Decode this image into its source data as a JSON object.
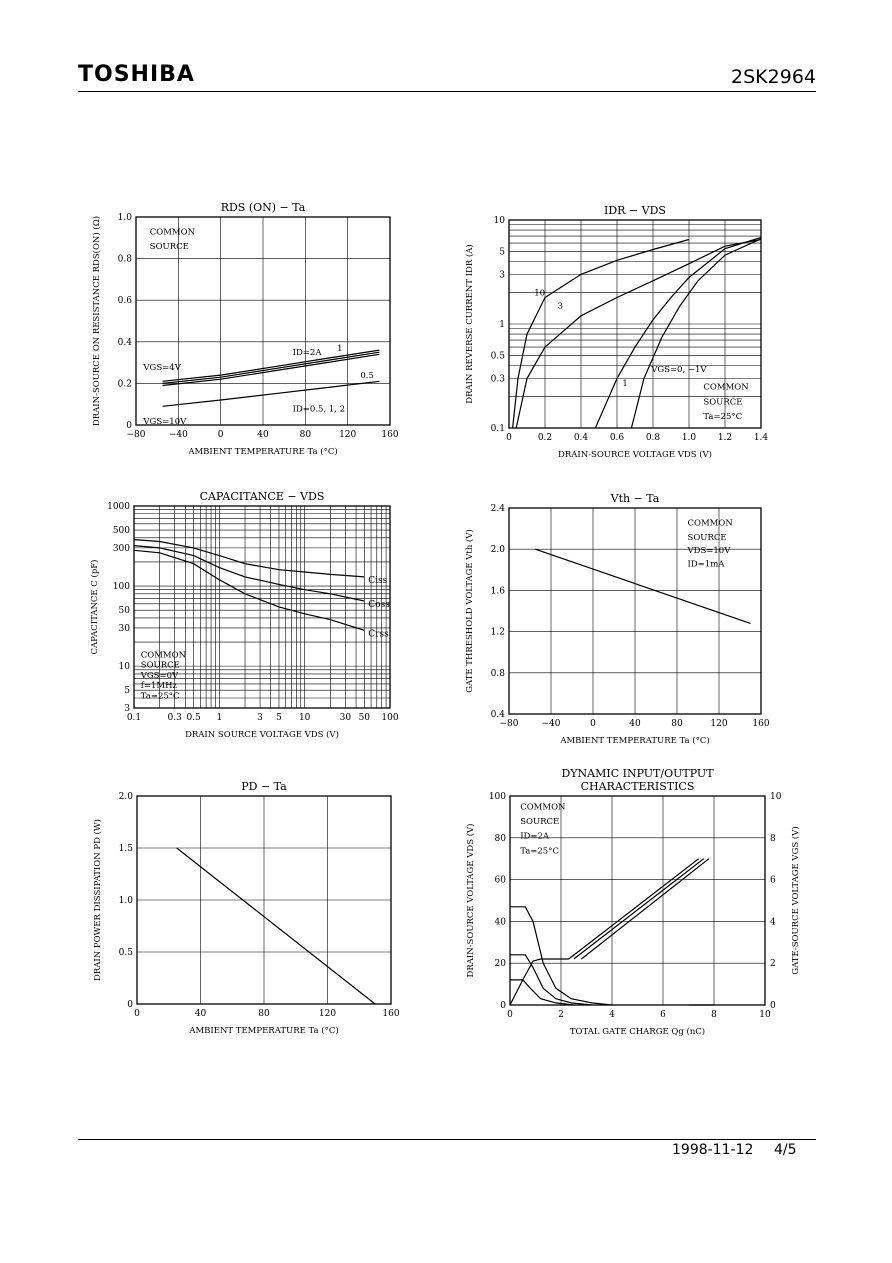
{
  "header": {
    "brand": "TOSHIBA",
    "part_number": "2SK2964"
  },
  "footer": {
    "date": "1998-11-12",
    "page": "4/5"
  },
  "chart_data": [
    {
      "id": "rds",
      "type": "line",
      "title": "RDS (ON) − Ta",
      "xlabel": "AMBIENT TEMPERATURE   Ta   (°C)",
      "ylabel": "DRAIN-SOURCE ON RESISTANCE RDS(ON) (Ω)",
      "xlim": [
        -80,
        160
      ],
      "ylim": [
        0,
        1.0
      ],
      "xticks": [
        -80,
        -40,
        0,
        40,
        80,
        120,
        160
      ],
      "yticks": [
        0,
        0.2,
        0.4,
        0.6,
        0.8,
        1.0
      ],
      "xtick_labels": [
        "−80",
        "−40",
        "0",
        "40",
        "80",
        "120",
        "160"
      ],
      "ytick_labels": [
        "0",
        "0.2",
        "0.4",
        "0.6",
        "0.8",
        "1.0"
      ],
      "series": [
        {
          "x": [
            -55,
            0,
            50,
            100,
            150
          ],
          "y": [
            0.19,
            0.22,
            0.26,
            0.3,
            0.34
          ]
        },
        {
          "x": [
            -55,
            0,
            50,
            100,
            150
          ],
          "y": [
            0.2,
            0.23,
            0.27,
            0.31,
            0.35
          ]
        },
        {
          "x": [
            -55,
            0,
            50,
            100,
            150
          ],
          "y": [
            0.21,
            0.24,
            0.28,
            0.32,
            0.36
          ]
        },
        {
          "x": [
            -55,
            0,
            50,
            100,
            150
          ],
          "y": [
            0.09,
            0.12,
            0.15,
            0.18,
            0.21
          ]
        }
      ],
      "annotations": [
        {
          "text": "COMMON",
          "x": -67,
          "y": 0.93
        },
        {
          "text": "SOURCE",
          "x": -67,
          "y": 0.86
        },
        {
          "text": "VGS=4V",
          "x": -73,
          "y": 0.28
        },
        {
          "text": "ID=2A",
          "x": 68,
          "y": 0.35
        },
        {
          "text": "1",
          "x": 110,
          "y": 0.37
        },
        {
          "text": "0.5",
          "x": 132,
          "y": 0.24
        },
        {
          "text": "VGS=10V",
          "x": -73,
          "y": 0.02
        },
        {
          "text": "ID=0.5, 1, 2",
          "x": 68,
          "y": 0.08
        }
      ]
    },
    {
      "id": "idr",
      "type": "line",
      "title": "IDR − VDS",
      "xlabel": "DRAIN-SOURCE VOLTAGE   VDS   (V)",
      "ylabel": "DRAIN REVERSE CURRENT   IDR   (A)",
      "xlim": [
        0,
        1.4
      ],
      "ylim": [
        0.1,
        10
      ],
      "yscale": "log",
      "xticks": [
        0,
        0.2,
        0.4,
        0.6,
        0.8,
        1.0,
        1.2,
        1.4
      ],
      "yticks": [
        0.1,
        0.3,
        0.5,
        1,
        3,
        5,
        10
      ],
      "xtick_labels": [
        "0",
        "0.2",
        "0.4",
        "0.6",
        "0.8",
        "1.0",
        "1.2",
        "1.4"
      ],
      "ytick_labels": [
        "0.1",
        "0.3",
        "0.5",
        "1",
        "3",
        "5",
        "10"
      ],
      "series": [
        {
          "x": [
            0.02,
            0.05,
            0.1,
            0.2,
            0.4,
            0.6,
            0.8,
            1.0
          ],
          "y": [
            0.1,
            0.3,
            0.8,
            1.8,
            3.0,
            4.1,
            5.2,
            6.5
          ]
        },
        {
          "x": [
            0.04,
            0.1,
            0.2,
            0.4,
            0.6,
            0.8,
            1.0,
            1.2,
            1.4
          ],
          "y": [
            0.1,
            0.3,
            0.6,
            1.2,
            1.8,
            2.6,
            3.8,
            5.6,
            6.5
          ]
        },
        {
          "x": [
            0.48,
            0.6,
            0.7,
            0.8,
            0.9,
            1.0,
            1.2,
            1.4
          ],
          "y": [
            0.1,
            0.3,
            0.6,
            1.1,
            1.8,
            2.8,
            5.3,
            6.8
          ]
        },
        {
          "x": [
            0.68,
            0.75,
            0.85,
            0.95,
            1.05,
            1.2,
            1.4
          ],
          "y": [
            0.1,
            0.3,
            0.75,
            1.5,
            2.6,
            4.6,
            6.6
          ]
        }
      ],
      "annotations": [
        {
          "text": "10",
          "x": 0.14,
          "y": 2.0
        },
        {
          "text": "3",
          "x": 0.27,
          "y": 1.5
        },
        {
          "text": "1",
          "x": 0.63,
          "y": 0.27
        },
        {
          "text": "VGS=0,  −1V",
          "x": 0.79,
          "y": 0.37
        },
        {
          "text": "COMMON",
          "x": 1.08,
          "y": 0.25
        },
        {
          "text": "SOURCE",
          "x": 1.08,
          "y": 0.18
        },
        {
          "text": "Ta=25°C",
          "x": 1.08,
          "y": 0.13
        }
      ]
    },
    {
      "id": "cap",
      "type": "line",
      "title": "CAPACITANCE  −  VDS",
      "xlabel": "DRAIN SOURCE VOLTAGE   VDS   (V)",
      "ylabel": "CAPACITANCE   C   (pF)",
      "xlim": [
        0.1,
        100
      ],
      "ylim": [
        3,
        1000
      ],
      "xscale": "log",
      "yscale": "log",
      "xticks": [
        0.1,
        0.3,
        0.5,
        1,
        3,
        5,
        10,
        30,
        50,
        100
      ],
      "yticks": [
        3,
        5,
        10,
        30,
        50,
        100,
        300,
        500,
        1000
      ],
      "xtick_labels": [
        "0.1",
        "0.3",
        "0.5",
        "1",
        "3",
        "5",
        "10",
        "30",
        "50",
        "100"
      ],
      "ytick_labels": [
        "3",
        "5",
        "10",
        "30",
        "50",
        "100",
        "300",
        "500",
        "1000"
      ],
      "series": [
        {
          "name": "Ciss",
          "x": [
            0.1,
            0.2,
            0.5,
            1,
            2,
            5,
            10,
            20,
            50
          ],
          "y": [
            380,
            360,
            300,
            240,
            190,
            160,
            150,
            140,
            130
          ]
        },
        {
          "name": "Coss",
          "x": [
            0.1,
            0.2,
            0.5,
            1,
            2,
            5,
            10,
            20,
            50
          ],
          "y": [
            320,
            300,
            240,
            170,
            130,
            105,
            90,
            80,
            65
          ]
        },
        {
          "name": "Crss",
          "x": [
            0.1,
            0.2,
            0.5,
            1,
            2,
            5,
            10,
            20,
            50
          ],
          "y": [
            280,
            260,
            190,
            120,
            80,
            55,
            45,
            38,
            28
          ]
        }
      ],
      "annotations": [
        {
          "text": "COMMON",
          "x": 0.12,
          "y": 14
        },
        {
          "text": "SOURCE",
          "x": 0.12,
          "y": 10.5
        },
        {
          "text": "VGS=0V",
          "x": 0.12,
          "y": 7.8
        },
        {
          "text": "f=1MHz",
          "x": 0.12,
          "y": 5.8
        },
        {
          "text": "Ta=25°C",
          "x": 0.12,
          "y": 4.3
        }
      ]
    },
    {
      "id": "vth",
      "type": "line",
      "title": "Vth  −  Ta",
      "xlabel": "AMBIENT TEMPERATURE   Ta   (°C)",
      "ylabel": "GATE THRESHOLD VOLTAGE   Vth   (V)",
      "xlim": [
        -80,
        160
      ],
      "ylim": [
        0.4,
        2.4
      ],
      "xticks": [
        -80,
        -40,
        0,
        40,
        80,
        120,
        160
      ],
      "yticks": [
        0.4,
        0.8,
        1.2,
        1.6,
        2.0,
        2.4
      ],
      "xtick_labels": [
        "−80",
        "−40",
        "0",
        "40",
        "80",
        "120",
        "160"
      ],
      "ytick_labels": [
        "0.4",
        "0.8",
        "1.2",
        "1.6",
        "2.0",
        "2.4"
      ],
      "series": [
        {
          "x": [
            -55,
            150
          ],
          "y": [
            2.0,
            1.28
          ]
        }
      ],
      "annotations": [
        {
          "text": "COMMON",
          "x": 90,
          "y": 2.26
        },
        {
          "text": "SOURCE",
          "x": 90,
          "y": 2.12
        },
        {
          "text": "VDS=10V",
          "x": 90,
          "y": 1.99
        },
        {
          "text": "ID=1mA",
          "x": 90,
          "y": 1.86
        }
      ]
    },
    {
      "id": "pd",
      "type": "line",
      "title": "PD  −  Ta",
      "xlabel": "AMBIENT TEMPERATURE   Ta   (°C)",
      "ylabel": "DRAIN POWER DISSIPATION   PD   (W)",
      "xlim": [
        0,
        160
      ],
      "ylim": [
        0,
        2.0
      ],
      "xticks": [
        0,
        40,
        80,
        120,
        160
      ],
      "yticks": [
        0,
        0.5,
        1.0,
        1.5,
        2.0
      ],
      "xtick_labels": [
        "0",
        "40",
        "80",
        "120",
        "160"
      ],
      "ytick_labels": [
        "0",
        "0.5",
        "1.0",
        "1.5",
        "2.0"
      ],
      "series": [
        {
          "x": [
            25,
            150
          ],
          "y": [
            1.5,
            0
          ]
        }
      ]
    },
    {
      "id": "dyn",
      "type": "line",
      "title": "DYNAMIC INPUT/OUTPUT",
      "subtitle": "CHARACTERISTICS",
      "xlabel": "TOTAL GATE CHARGE   Qg   (nC)",
      "ylabel": "DRAIN-SOURCE VOLTAGE   VDS   (V)",
      "ylabel2": "GATE-SOURCE VOLTAGE   VGS   (V)",
      "xlim": [
        0,
        10
      ],
      "ylim": [
        0,
        100
      ],
      "y2lim": [
        0,
        10
      ],
      "xticks": [
        0,
        2,
        4,
        6,
        8,
        10
      ],
      "yticks": [
        0,
        20,
        40,
        60,
        80,
        100
      ],
      "y2ticks": [
        0,
        2,
        4,
        6,
        8,
        10
      ],
      "xtick_labels": [
        "0",
        "2",
        "4",
        "6",
        "8",
        "10"
      ],
      "ytick_labels": [
        "0",
        "20",
        "40",
        "60",
        "80",
        "100"
      ],
      "y2tick_labels": [
        "0",
        "2",
        "4",
        "6",
        "8",
        "10"
      ],
      "series": [
        {
          "x": [
            0,
            0.6,
            0.9,
            1.3,
            1.8,
            2.4,
            3.2,
            4.0
          ],
          "y": [
            47,
            47,
            40,
            20,
            8,
            3,
            1,
            0
          ]
        },
        {
          "x": [
            0,
            0.6,
            0.9,
            1.3,
            1.8,
            2.4,
            3.2
          ],
          "y": [
            24,
            24,
            18,
            8,
            3,
            1,
            0
          ]
        },
        {
          "x": [
            0,
            0.5,
            0.8,
            1.2,
            1.8,
            2.5
          ],
          "y": [
            12,
            12,
            8,
            3,
            1,
            0
          ]
        },
        {
          "x": [
            0,
            0.5,
            0.9,
            1.2,
            2.3,
            7.4
          ],
          "y": [
            0,
            12,
            21,
            22,
            22,
            70
          ]
        },
        {
          "x": [
            2.5,
            7.6
          ],
          "y": [
            22,
            70
          ]
        },
        {
          "x": [
            2.8,
            7.8
          ],
          "y": [
            22,
            70
          ]
        },
        {
          "x": [
            7.0,
            8.0
          ],
          "y": [
            0,
            0
          ]
        }
      ],
      "annotations": [
        {
          "text": "COMMON",
          "x": 0.4,
          "y": 95
        },
        {
          "text": "SOURCE",
          "x": 0.4,
          "y": 88
        },
        {
          "text": "ID=2A",
          "x": 0.4,
          "y": 81
        },
        {
          "text": "Ta=25°C",
          "x": 0.4,
          "y": 74
        }
      ]
    }
  ]
}
